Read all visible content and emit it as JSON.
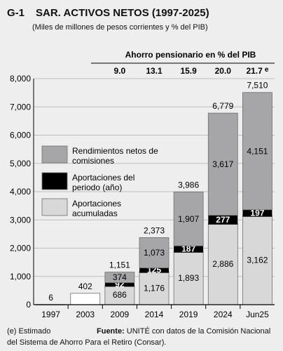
{
  "figure": {
    "code": "G-1",
    "title": "SAR. ACTIVOS NETOS (1997-2025)",
    "subtitle": "(Miles de millones de pesos corrientes y % del PIB)"
  },
  "savings_header": {
    "title": "Ahorro pensionario en % del PIB",
    "values": [
      "9.0",
      "13.1",
      "15.9",
      "20.0",
      "21.7"
    ],
    "estimate_marker": "e"
  },
  "legend": [
    {
      "label_lines": [
        "Rendimientos netos de",
        "comisiones"
      ],
      "color": "#a6a6a8"
    },
    {
      "label_lines": [
        "Aportaciones del",
        "periodo (año)"
      ],
      "color": "#000000"
    },
    {
      "label_lines": [
        "Aportaciones",
        "acumuladas"
      ],
      "color": "#d8d8d8"
    }
  ],
  "footnote": {
    "estimate_note": "(e) Estimado",
    "source_label": "Fuente:",
    "source_text": "UNITÉ con datos de la Comisión Nacional",
    "source_text_2": "del Sistema de Ahorro Para el Retiro (Consar)."
  },
  "chart_data": {
    "type": "bar",
    "stacked": true,
    "categories": [
      "1997",
      "2003",
      "2009",
      "2014",
      "2019",
      "2024",
      "Jun25"
    ],
    "series": [
      {
        "name": "Aportaciones acumuladas",
        "color": "#d8d8d8",
        "values": [
          6,
          402,
          686,
          1176,
          1893,
          2886,
          3162
        ]
      },
      {
        "name": "Aportaciones del periodo (año)",
        "color": "#000000",
        "values": [
          0,
          0,
          92,
          125,
          187,
          277,
          197
        ]
      },
      {
        "name": "Rendimientos netos de comisiones",
        "color": "#a6a6a8",
        "values": [
          0,
          0,
          374,
          1073,
          1907,
          3617,
          4151
        ]
      }
    ],
    "segment_labels": [
      [
        "6",
        "",
        ""
      ],
      [
        "402",
        "",
        ""
      ],
      [
        "686",
        "92",
        "374"
      ],
      [
        "1,176",
        "125",
        "1,073"
      ],
      [
        "1,893",
        "187",
        "1,907"
      ],
      [
        "2,886",
        "277",
        "3,617"
      ],
      [
        "3,162",
        "197",
        "4,151"
      ]
    ],
    "totals": [
      null,
      null,
      1151,
      2373,
      3986,
      6779,
      7510
    ],
    "total_labels": [
      "",
      "",
      "1,151",
      "2,373",
      "3,986",
      "6,779",
      "7,510"
    ],
    "y_ticks": [
      "0",
      "1,000",
      "2,000",
      "3,000",
      "4,000",
      "5,000",
      "6,000",
      "7,000",
      "8,000"
    ],
    "ylim": [
      0,
      8000
    ]
  }
}
